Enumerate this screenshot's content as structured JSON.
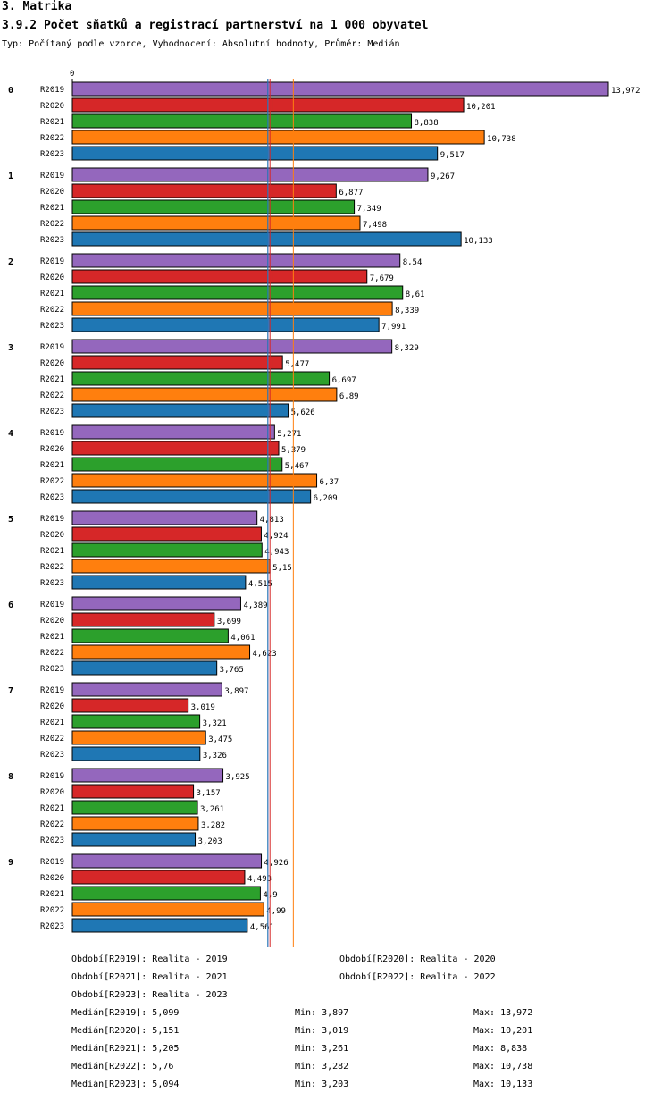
{
  "header": {
    "section": "3. Matrika",
    "title": "3.9.2 Počet sňatků a registrací partnerství na 1 000 obyvatel",
    "subtitle": "Typ: Počítaný podle vzorce, Vyhodnocení: Absolutní hodnoty, Průměr: Medián"
  },
  "chart_data": {
    "type": "bar",
    "orientation": "horizontal",
    "axis_zero_label": "0",
    "xlim": [
      0,
      13.972
    ],
    "categories": [
      "0",
      "1",
      "2",
      "3",
      "4",
      "5",
      "6",
      "7",
      "8",
      "9"
    ],
    "series": [
      {
        "name": "R2019",
        "color": "#9467bd",
        "values": [
          13.972,
          9.267,
          8.54,
          8.329,
          5.271,
          4.813,
          4.389,
          3.897,
          3.925,
          4.926
        ],
        "labels": [
          "13,972",
          "9,267",
          "8,54",
          "8,329",
          "5,271",
          "4,813",
          "4,389",
          "3,897",
          "3,925",
          "4,926"
        ]
      },
      {
        "name": "R2020",
        "color": "#d62728",
        "values": [
          10.201,
          6.877,
          7.679,
          5.477,
          5.379,
          4.924,
          3.699,
          3.019,
          3.157,
          4.493
        ],
        "labels": [
          "10,201",
          "6,877",
          "7,679",
          "5,477",
          "5,379",
          "4,924",
          "3,699",
          "3,019",
          "3,157",
          "4,493"
        ]
      },
      {
        "name": "R2021",
        "color": "#2ca02c",
        "values": [
          8.838,
          7.349,
          8.61,
          6.697,
          5.467,
          4.943,
          4.061,
          3.321,
          3.261,
          4.9
        ],
        "labels": [
          "8,838",
          "7,349",
          "8,61",
          "6,697",
          "5,467",
          "4,943",
          "4,061",
          "3,321",
          "3,261",
          "4,9"
        ]
      },
      {
        "name": "R2022",
        "color": "#ff7f0e",
        "values": [
          10.738,
          7.498,
          8.339,
          6.89,
          6.37,
          5.15,
          4.623,
          3.475,
          3.282,
          4.99
        ],
        "labels": [
          "10,738",
          "7,498",
          "8,339",
          "6,89",
          "6,37",
          "5,15",
          "4,623",
          "3,475",
          "3,282",
          "4,99"
        ]
      },
      {
        "name": "R2023",
        "color": "#1f77b4",
        "values": [
          9.517,
          10.133,
          7.991,
          5.626,
          6.209,
          4.515,
          3.765,
          3.326,
          3.203,
          4.561
        ],
        "labels": [
          "9,517",
          "10,133",
          "7,991",
          "5,626",
          "6,209",
          "4,515",
          "3,765",
          "3,326",
          "3,203",
          "4,561"
        ]
      }
    ],
    "median_lines": [
      {
        "series": "R2019",
        "value": 5.099,
        "color": "#9467bd"
      },
      {
        "series": "R2020",
        "value": 5.151,
        "color": "#d62728"
      },
      {
        "series": "R2021",
        "value": 5.205,
        "color": "#2ca02c"
      },
      {
        "series": "R2022",
        "value": 5.76,
        "color": "#ff7f0e"
      },
      {
        "series": "R2023",
        "value": 5.094,
        "color": "#1f77b4"
      }
    ]
  },
  "legend": {
    "periods": [
      "Období[R2019]: Realita - 2019",
      "Období[R2020]: Realita - 2020",
      "Období[R2021]: Realita - 2021",
      "Období[R2022]: Realita - 2022",
      "Období[R2023]: Realita - 2023"
    ],
    "stats": [
      {
        "median": "Medián[R2019]: 5,099",
        "min": "Min: 3,897",
        "max": "Max: 13,972"
      },
      {
        "median": "Medián[R2020]: 5,151",
        "min": "Min: 3,019",
        "max": "Max: 10,201"
      },
      {
        "median": "Medián[R2021]: 5,205",
        "min": "Min: 3,261",
        "max": "Max: 8,838"
      },
      {
        "median": "Medián[R2022]: 5,76",
        "min": "Min: 3,282",
        "max": "Max: 10,738"
      },
      {
        "median": "Medián[R2023]: 5,094",
        "min": "Min: 3,203",
        "max": "Max: 10,133"
      }
    ]
  }
}
